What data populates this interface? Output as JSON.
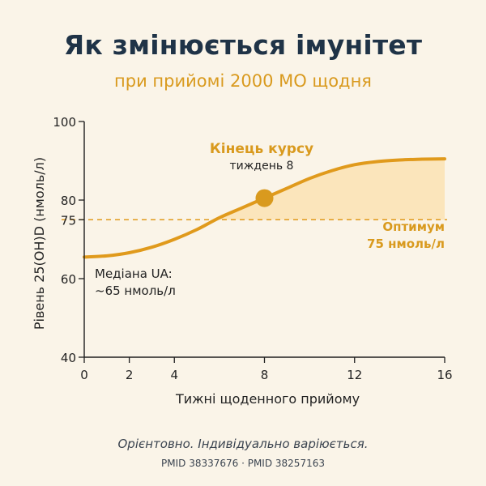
{
  "header": {
    "title": "Як змінюється імунітет",
    "subtitle": "при прийомі 2000 МО щодня"
  },
  "footer": {
    "note": "Орієнтовно. Індивідуально варіюється.",
    "refs": "PMID 38337676 · PMID 38257163"
  },
  "colors": {
    "accent": "#d99a1e",
    "line": "#e09a1c",
    "fill": "#fbe3b6",
    "text_dark": "#1f3347",
    "axis": "#1f1f1f"
  },
  "chart_data": {
    "type": "line",
    "title": "",
    "xlabel": "Тижні щоденного прийому",
    "ylabel": "Рівень 25(OH)D (нмоль/л)",
    "xlim": [
      0,
      16
    ],
    "ylim": [
      40,
      100
    ],
    "x_ticks": [
      0,
      2,
      4,
      8,
      12,
      16
    ],
    "y_ticks": [
      40,
      60,
      75,
      80,
      100
    ],
    "grid": false,
    "series": [
      {
        "name": "",
        "x": [
          0,
          1,
          2,
          3,
          4,
          5,
          6,
          7,
          8,
          9,
          10,
          11,
          12,
          13,
          14,
          15,
          16
        ],
        "y": [
          65.5,
          65.8,
          66.6,
          68.0,
          70.0,
          72.5,
          75.5,
          78.0,
          80.5,
          83.0,
          85.5,
          87.5,
          89.0,
          89.8,
          90.2,
          90.4,
          90.5
        ]
      }
    ],
    "reference_line": {
      "y": 75
    },
    "highlight_point": {
      "x": 8,
      "y": 80.5,
      "label": "Кінець курсу",
      "sublabel": "тиждень 8"
    },
    "annotations": {
      "optimum_label": "Оптимум",
      "optimum_value": "75 нмоль/л",
      "median_label": "Медіана UA:",
      "median_value": "~65 нмоль/л"
    }
  }
}
